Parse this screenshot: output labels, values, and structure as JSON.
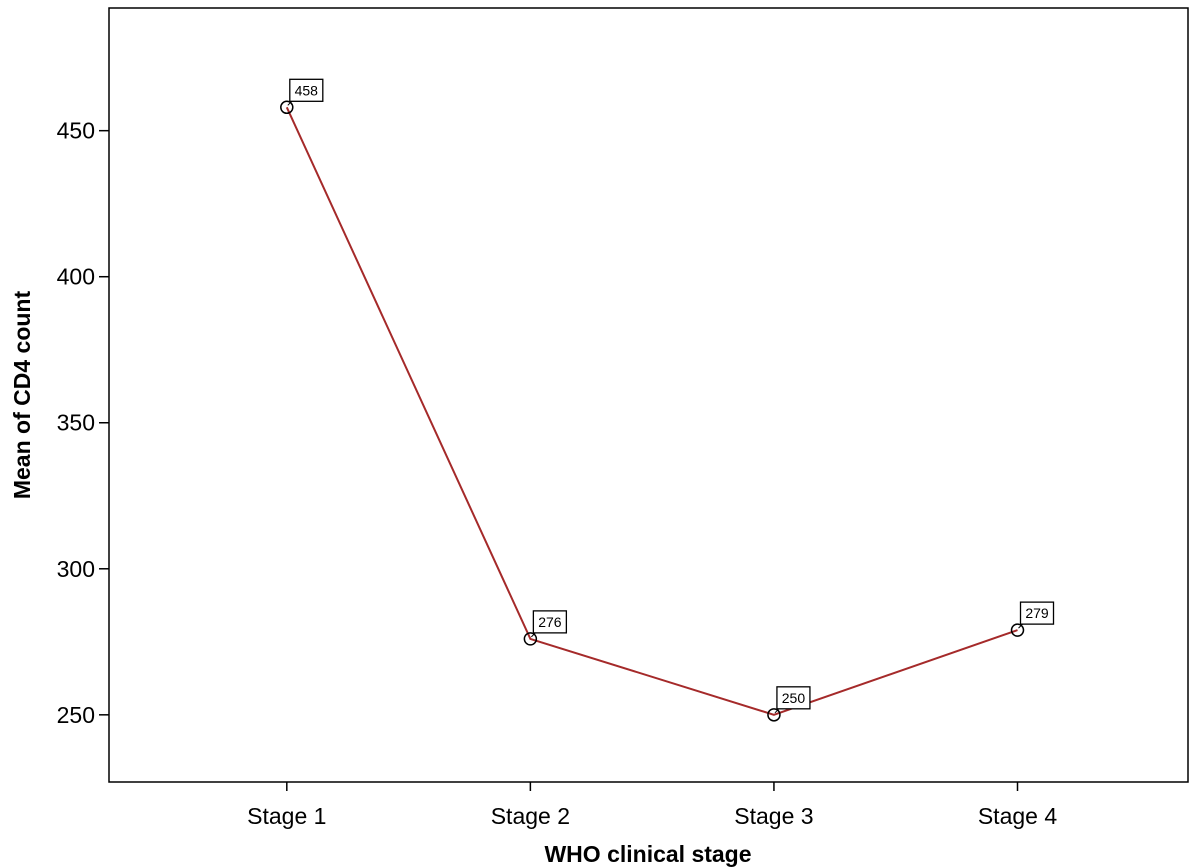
{
  "chart_data": {
    "type": "line",
    "categories": [
      "Stage 1",
      "Stage 2",
      "Stage 3",
      "Stage 4"
    ],
    "values": [
      458,
      276,
      250,
      279
    ],
    "data_labels": [
      "458",
      "276",
      "250",
      "279"
    ],
    "xlabel": "WHO clinical stage",
    "ylabel": "Mean of CD4 count",
    "yticks": [
      250,
      300,
      350,
      400,
      450
    ],
    "ytick_labels": [
      "250",
      "300",
      "350",
      "400",
      "450"
    ],
    "ylim": [
      227,
      492
    ],
    "grid": false,
    "line_color": "#a52a2a",
    "marker": "open-circle"
  }
}
